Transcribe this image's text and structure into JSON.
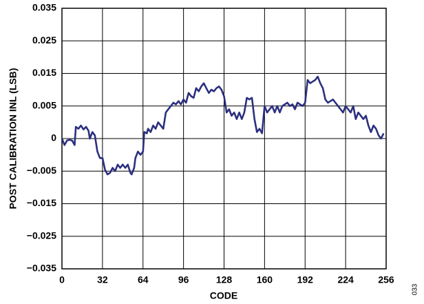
{
  "chart_data": {
    "type": "line",
    "xlabel": "CODE",
    "ylabel": "POST CALIBRATION INL (LSB)",
    "annotation": "033",
    "xlim": [
      0,
      256
    ],
    "xticks": [
      0,
      32,
      64,
      96,
      128,
      160,
      192,
      224,
      256
    ],
    "ylim": [
      -0.035,
      0.035
    ],
    "yticks": [
      0.035,
      0.025,
      0.015,
      0.005,
      0,
      {
        "value": -0.005,
        "label": "−0.005"
      },
      {
        "value": -0.015,
        "label": "−0.015"
      },
      {
        "value": -0.025,
        "label": "−0.025"
      },
      {
        "value": -0.035,
        "label": "−0.035"
      }
    ],
    "grid": true,
    "series": [
      {
        "color": "#2b2f7e",
        "x": [
          0,
          2,
          4,
          6,
          8,
          10,
          11,
          13,
          15,
          17,
          19,
          21,
          22,
          24,
          26,
          28,
          30,
          32,
          34,
          36,
          38,
          40,
          42,
          44,
          46,
          48,
          50,
          52,
          54,
          55,
          57,
          58,
          60,
          62,
          64,
          65,
          67,
          68,
          70,
          72,
          74,
          76,
          78,
          80,
          82,
          84,
          86,
          88,
          90,
          92,
          94,
          96,
          98,
          100,
          102,
          104,
          106,
          108,
          110,
          112,
          114,
          116,
          118,
          120,
          122,
          124,
          126,
          128,
          130,
          132,
          134,
          136,
          138,
          140,
          142,
          144,
          146,
          148,
          150,
          152,
          154,
          156,
          158,
          160,
          162,
          164,
          166,
          168,
          170,
          172,
          174,
          176,
          178,
          180,
          182,
          184,
          186,
          188,
          190,
          192,
          194,
          196,
          198,
          200,
          202,
          204,
          206,
          208,
          210,
          212,
          214,
          216,
          218,
          220,
          222,
          224,
          226,
          228,
          230,
          232,
          234,
          236,
          238,
          240,
          242,
          244,
          246,
          248,
          250,
          252,
          254
        ],
        "values": [
          0,
          -0.001,
          -0.0003,
          -0.0002,
          -0.0003,
          -0.001,
          0.0018,
          0.0015,
          0.002,
          0.0014,
          0.0018,
          0.0012,
          0,
          0.001,
          0.0005,
          -0.002,
          -0.003,
          -0.003,
          -0.0048,
          -0.006,
          -0.0055,
          -0.0045,
          -0.005,
          -0.004,
          -0.0045,
          -0.004,
          -0.0045,
          -0.004,
          -0.0055,
          -0.006,
          -0.0045,
          -0.003,
          -0.002,
          -0.0025,
          -0.002,
          0.001,
          0.0008,
          0.0015,
          0.001,
          0.002,
          0.0015,
          0.0025,
          0.002,
          0.0015,
          0.004,
          0.0045,
          0.005,
          0.006,
          0.0055,
          0.0065,
          0.0055,
          0.007,
          0.006,
          0.009,
          0.008,
          0.0075,
          0.0105,
          0.0095,
          0.011,
          0.012,
          0.0105,
          0.009,
          0.01,
          0.0095,
          0.0105,
          0.011,
          0.01,
          0.008,
          0.004,
          0.0045,
          0.0035,
          0.004,
          0.003,
          0.004,
          0.003,
          0.004,
          0.0075,
          0.007,
          0.0075,
          0.003,
          0.001,
          0.0015,
          0.0008,
          0.005,
          0.004,
          0.0045,
          0.005,
          0.004,
          0.005,
          0.004,
          0.005,
          0.0055,
          0.006,
          0.005,
          0.0055,
          0.0045,
          0.006,
          0.0055,
          0.005,
          0.006,
          0.013,
          0.012,
          0.0125,
          0.013,
          0.014,
          0.012,
          0.0105,
          0.007,
          0.006,
          0.0065,
          0.007,
          0.006,
          0.005,
          0.0045,
          0.004,
          0.005,
          0.0045,
          0.004,
          0.005,
          0.003,
          0.004,
          0.0035,
          0.003,
          0.0035,
          0.002,
          0.001,
          0.002,
          0.0015,
          0.0005,
          0,
          0.0008
        ]
      }
    ]
  }
}
